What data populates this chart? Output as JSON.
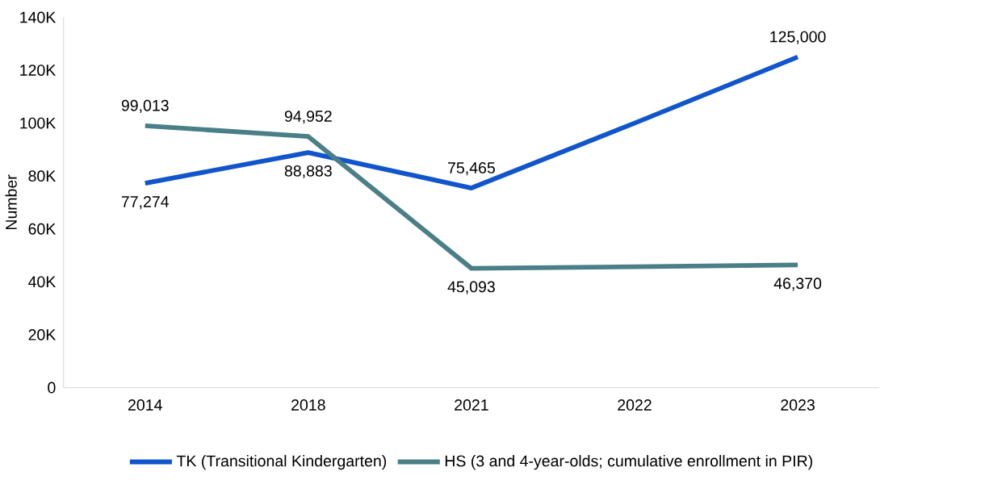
{
  "chart_data": {
    "type": "line",
    "ylabel": "Number",
    "categories": [
      "2014",
      "2018",
      "2021",
      "2022",
      "2023"
    ],
    "series": [
      {
        "name": "TK (Transitional Kindergarten)",
        "color": "#1155cc",
        "values": [
          77274,
          88883,
          75465,
          100000,
          125000
        ],
        "value_labels": [
          "77,274",
          "88,883",
          "75,465",
          null,
          "125,000"
        ]
      },
      {
        "name": "HS (3 and 4-year-olds; cumulative enrollment in PIR)",
        "color": "#4a7f87",
        "values": [
          99013,
          94952,
          45093,
          45700,
          46370
        ],
        "value_labels": [
          "99,013",
          "94,952",
          "45,093",
          null,
          "46,370"
        ]
      }
    ],
    "ylim": [
      0,
      140000
    ],
    "yticks": [
      {
        "value": 0,
        "label": "0"
      },
      {
        "value": 20000,
        "label": "20K"
      },
      {
        "value": 40000,
        "label": "40K"
      },
      {
        "value": 60000,
        "label": "60K"
      },
      {
        "value": 80000,
        "label": "80K"
      },
      {
        "value": 100000,
        "label": "100K"
      },
      {
        "value": 120000,
        "label": "120K"
      },
      {
        "value": 140000,
        "label": "140K"
      }
    ],
    "grid": false,
    "legend": "bottom",
    "marker": "none",
    "line_style": "solid"
  }
}
